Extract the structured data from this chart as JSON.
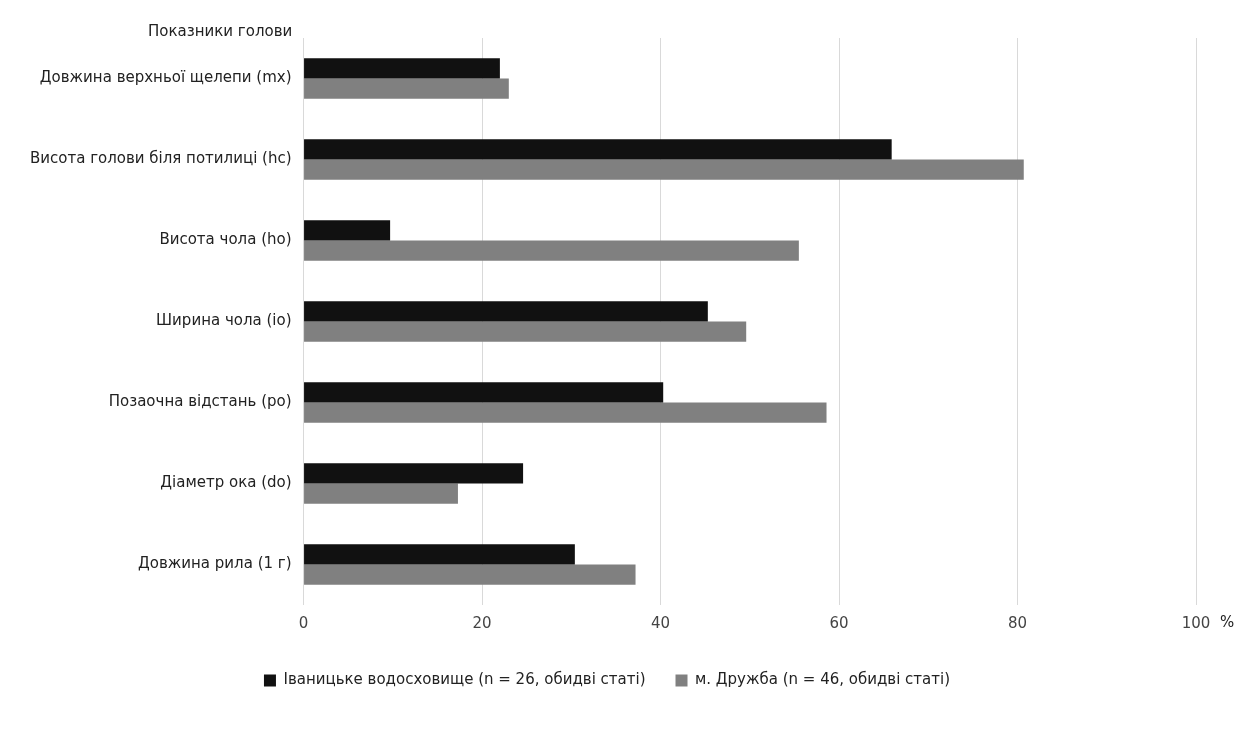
{
  "chart_data": {
    "type": "bar",
    "orientation": "horizontal",
    "ylabel": "Показники голови",
    "xlabel": "%",
    "categories": [
      "Довжина верхньої щелепи (mx)",
      "Висота голови біля потилиці (hc)",
      "Висота чола (ho)",
      "Ширина чола (io)",
      "Позаочна відстань (po)",
      "Діаметр ока (do)",
      "Довжина рила (1 г)"
    ],
    "series": [
      {
        "name": "Іваницьке водосховище (n = 26, обидві статі)",
        "color": "#111111",
        "values": [
          22.0,
          65.9,
          9.7,
          45.3,
          40.3,
          24.6,
          30.4
        ]
      },
      {
        "name": "м. Дружба (n = 46, обидві статі)",
        "color": "#808080",
        "values": [
          23.0,
          80.7,
          55.5,
          49.6,
          58.6,
          17.3,
          37.2
        ]
      }
    ],
    "xlim": [
      0,
      100
    ],
    "xticks": [
      0,
      20,
      40,
      60,
      80,
      100
    ],
    "grid": "x",
    "legend": "bottom"
  }
}
